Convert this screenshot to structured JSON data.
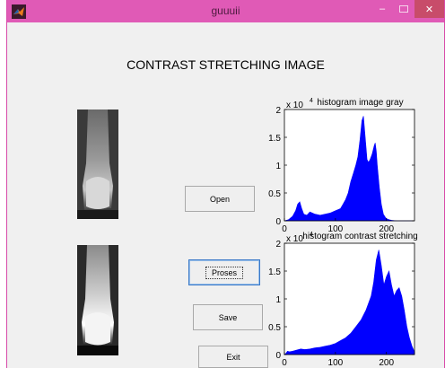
{
  "window": {
    "title": "guuuii",
    "minimize_label": "–",
    "close_label": "✕"
  },
  "heading": "CONTRAST STRETCHING IMAGE",
  "buttons": {
    "open": "Open",
    "proses": "Proses",
    "save": "Save",
    "exit": "Exit"
  },
  "colors": {
    "titlebar": "#e05ab6",
    "histogram_fill": "#0000ff"
  },
  "icons": {
    "app": "matlab-logo-icon",
    "minimize": "minimize-icon",
    "maximize": "maximize-icon",
    "close": "close-icon"
  },
  "chart_data": [
    {
      "type": "area",
      "title": "histogram image gray",
      "exponent_label": "x 10",
      "exponent_power": "4",
      "xlim": [
        0,
        255
      ],
      "ylim": [
        0,
        2
      ],
      "yticks": [
        0,
        0.5,
        1,
        1.5,
        2
      ],
      "ytick_labels": [
        "0",
        "0.5",
        "1",
        "1.5",
        "2"
      ],
      "xticks": [
        0,
        100,
        200
      ],
      "xtick_labels": [
        "0",
        "100",
        "200"
      ],
      "x": [
        0,
        8,
        16,
        22,
        26,
        30,
        34,
        38,
        44,
        50,
        60,
        70,
        80,
        90,
        100,
        110,
        115,
        120,
        125,
        130,
        135,
        140,
        144,
        148,
        152,
        155,
        158,
        162,
        165,
        168,
        172,
        176,
        178,
        180,
        182,
        186,
        190,
        194,
        198,
        200,
        205,
        210,
        220,
        230,
        240,
        255
      ],
      "values": [
        0,
        0.02,
        0.08,
        0.18,
        0.3,
        0.34,
        0.22,
        0.12,
        0.1,
        0.16,
        0.12,
        0.1,
        0.12,
        0.14,
        0.18,
        0.22,
        0.3,
        0.38,
        0.5,
        0.7,
        0.85,
        1.0,
        1.15,
        1.45,
        1.8,
        1.88,
        1.55,
        1.1,
        1.05,
        1.1,
        1.2,
        1.35,
        1.4,
        1.25,
        1.0,
        0.6,
        0.3,
        0.12,
        0.06,
        0.04,
        0.02,
        0.01,
        0,
        0,
        0,
        0
      ]
    },
    {
      "type": "area",
      "title": "histogram contrast stretching",
      "exponent_label": "x 10",
      "exponent_power": "4",
      "xlim": [
        0,
        255
      ],
      "ylim": [
        0,
        2
      ],
      "yticks": [
        0,
        0.5,
        1,
        1.5,
        2
      ],
      "ytick_labels": [
        "0",
        "0.5",
        "1",
        "1.5",
        "2"
      ],
      "xticks": [
        0,
        100,
        200
      ],
      "xtick_labels": [
        "0",
        "100",
        "200"
      ],
      "x": [
        0,
        3,
        6,
        10,
        16,
        24,
        32,
        40,
        50,
        60,
        70,
        80,
        90,
        100,
        110,
        120,
        130,
        140,
        150,
        160,
        170,
        175,
        180,
        185,
        190,
        195,
        200,
        205,
        210,
        215,
        220,
        225,
        230,
        235,
        240,
        245,
        250,
        255
      ],
      "values": [
        0,
        0.02,
        0.06,
        0.05,
        0.06,
        0.08,
        0.1,
        0.09,
        0.1,
        0.12,
        0.13,
        0.15,
        0.17,
        0.2,
        0.25,
        0.3,
        0.38,
        0.5,
        0.62,
        0.8,
        1.05,
        1.3,
        1.7,
        1.88,
        1.6,
        1.25,
        1.4,
        1.5,
        1.25,
        1.05,
        1.15,
        1.2,
        1.05,
        0.8,
        0.5,
        0.3,
        0.15,
        0.05
      ]
    }
  ]
}
